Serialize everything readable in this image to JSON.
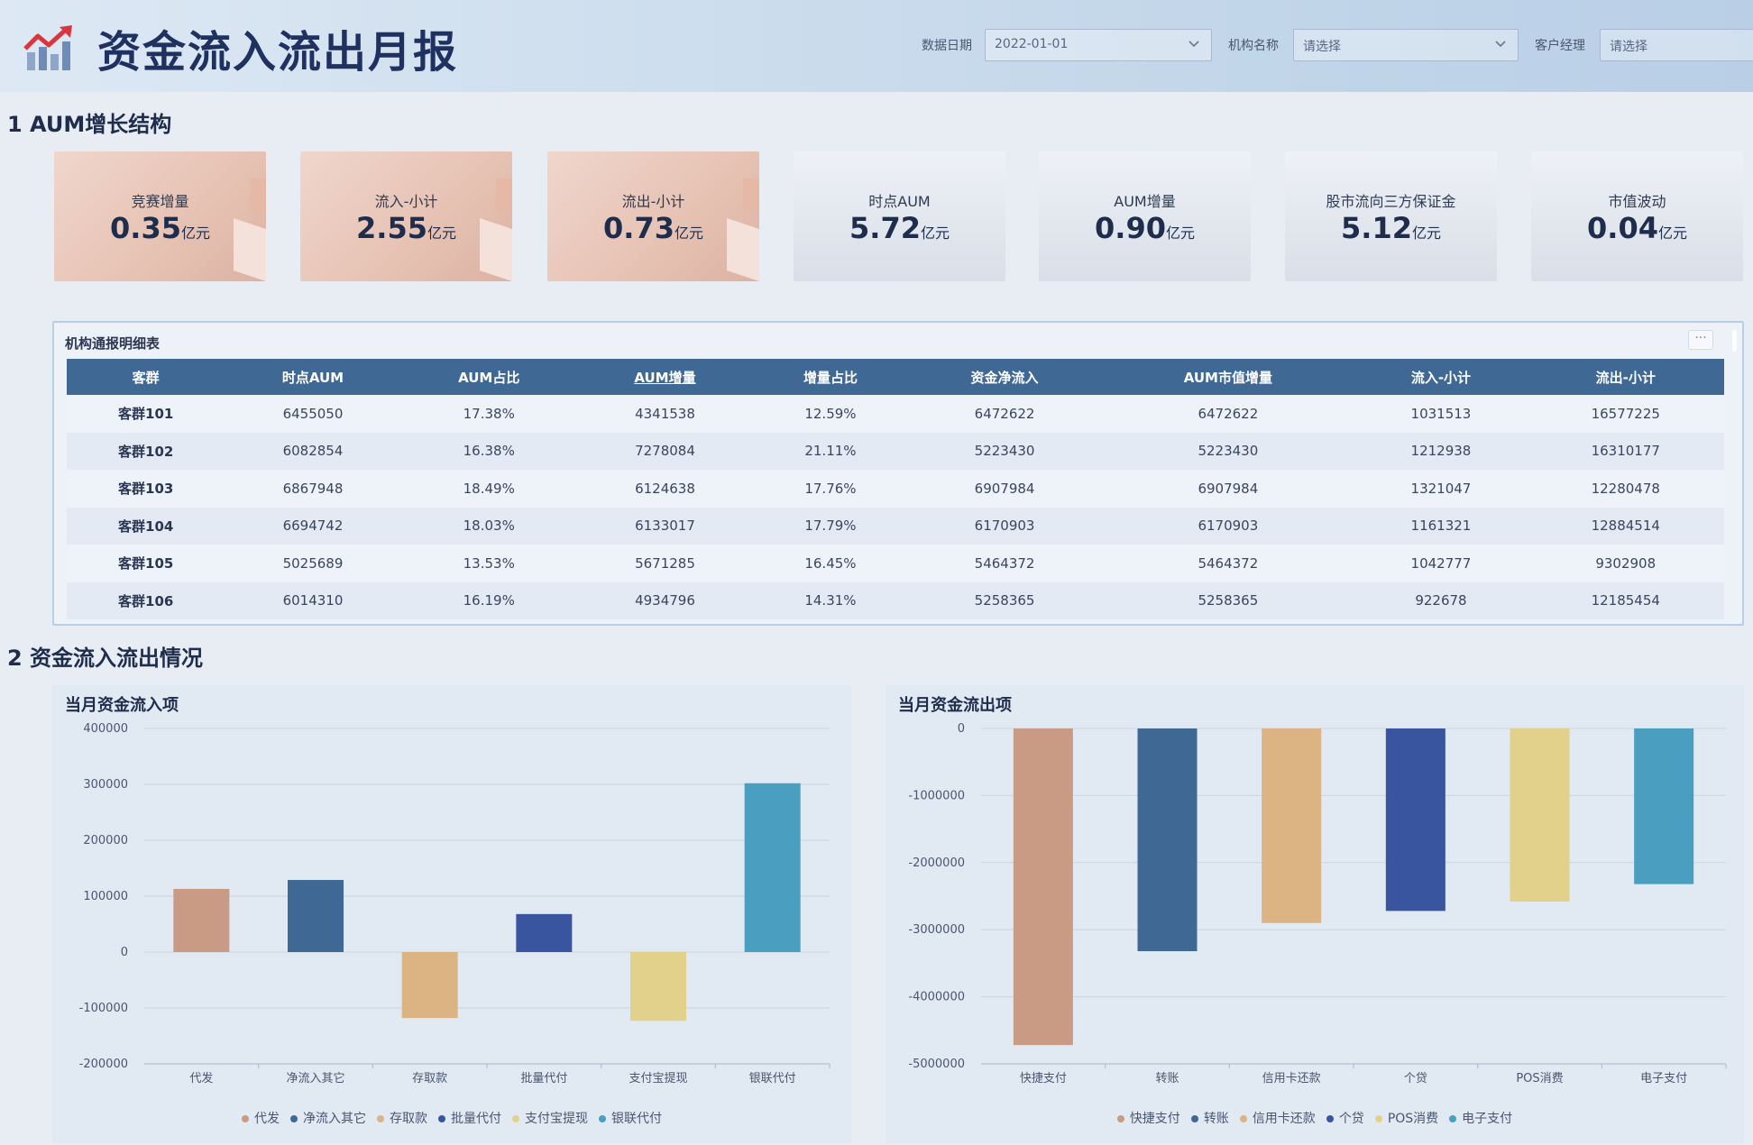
{
  "header": {
    "title": "资金流入流出月报",
    "filters": [
      {
        "label": "数据日期",
        "value": "2022-01-01"
      },
      {
        "label": "机构名称",
        "value": "请选择"
      },
      {
        "label": "客户经理",
        "value": "请选择"
      }
    ]
  },
  "sections": {
    "s1": "1 AUM增长结构",
    "s2": "2 资金流入流出情况"
  },
  "kpis": [
    {
      "label": "竞赛增量",
      "value": "0.35",
      "unit": "亿元"
    },
    {
      "label": "流入-小计",
      "value": "2.55",
      "unit": "亿元"
    },
    {
      "label": "流出-小计",
      "value": "0.73",
      "unit": "亿元"
    },
    {
      "label": "时点AUM",
      "value": "5.72",
      "unit": "亿元"
    },
    {
      "label": "AUM增量",
      "value": "0.90",
      "unit": "亿元"
    },
    {
      "label": "股市流向三方保证金",
      "value": "5.12",
      "unit": "亿元"
    },
    {
      "label": "市值波动",
      "value": "0.04",
      "unit": "亿元"
    }
  ],
  "table": {
    "title": "机构通报明细表",
    "more": "···",
    "columns": [
      "客群",
      "时点AUM",
      "AUM占比",
      "AUM增量",
      "增量占比",
      "资金净流入",
      "AUM市值增量",
      "流入-小计",
      "流出-小计"
    ],
    "rows": [
      [
        "客群101",
        "6455050",
        "17.38%",
        "4341538",
        "12.59%",
        "6472622",
        "6472622",
        "1031513",
        "16577225"
      ],
      [
        "客群102",
        "6082854",
        "16.38%",
        "7278084",
        "21.11%",
        "5223430",
        "5223430",
        "1212938",
        "16310177"
      ],
      [
        "客群103",
        "6867948",
        "18.49%",
        "6124638",
        "17.76%",
        "6907984",
        "6907984",
        "1321047",
        "12280478"
      ],
      [
        "客群104",
        "6694742",
        "18.03%",
        "6133017",
        "17.79%",
        "6170903",
        "6170903",
        "1161321",
        "12884514"
      ],
      [
        "客群105",
        "5025689",
        "13.53%",
        "5671285",
        "16.45%",
        "5464372",
        "5464372",
        "1042777",
        "9302908"
      ],
      [
        "客群106",
        "6014310",
        "16.19%",
        "4934796",
        "14.31%",
        "5258365",
        "5258365",
        "922678",
        "12185454"
      ]
    ]
  },
  "chart_data": [
    {
      "type": "bar",
      "title": "当月资金流入项",
      "categories": [
        "代发",
        "净流入其它",
        "存取款",
        "批量代付",
        "支付宝提现",
        "银联代付"
      ],
      "values": [
        113000,
        129000,
        -118000,
        68000,
        -123000,
        302000
      ],
      "colors": [
        "#c99a84",
        "#3f6994",
        "#dcb483",
        "#3a55a0",
        "#e2d18a",
        "#4a9fc0"
      ],
      "ylim": [
        -200000,
        400000
      ],
      "yticks": [
        -200000,
        -100000,
        0,
        100000,
        200000,
        300000,
        400000
      ],
      "ytick_labels": [
        "-200000",
        "-100000",
        "0",
        "100000",
        "200000",
        "300000",
        "400000"
      ],
      "legend": [
        "代发",
        "净流入其它",
        "存取款",
        "批量代付",
        "支付宝提现",
        "银联代付"
      ],
      "grid": true
    },
    {
      "type": "bar",
      "title": "当月资金流出项",
      "categories": [
        "快捷支付",
        "转账",
        "信用卡还款",
        "个贷",
        "POS消费",
        "电子支付"
      ],
      "values": [
        -4720000,
        -3320000,
        -2900000,
        -2720000,
        -2580000,
        -2320000
      ],
      "colors": [
        "#c99a84",
        "#3f6994",
        "#dcb483",
        "#3a55a0",
        "#e2d18a",
        "#4a9fc0"
      ],
      "ylim": [
        -5000000,
        0
      ],
      "yticks": [
        -5000000,
        -4000000,
        -3000000,
        -2000000,
        -1000000,
        0
      ],
      "ytick_labels": [
        "-5000000",
        "-4000000",
        "-3000000",
        "-2000000",
        "-1000000",
        "0"
      ],
      "legend": [
        "快捷支付",
        "转账",
        "信用卡还款",
        "个贷",
        "POS消费",
        "电子支付"
      ],
      "grid": true
    }
  ]
}
